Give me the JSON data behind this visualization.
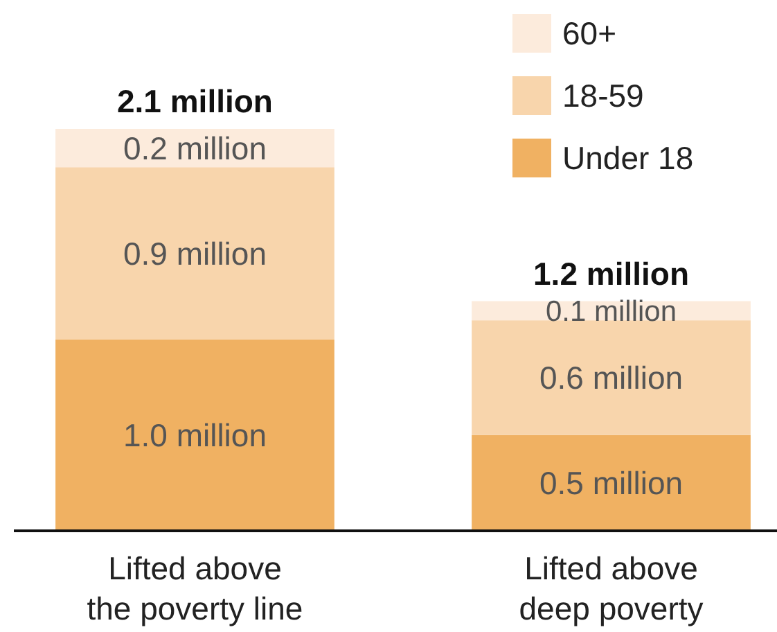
{
  "chart_data": {
    "type": "bar",
    "stacked": true,
    "legend": "top right",
    "categories": [
      "Lifted above\nthe poverty line",
      "Lifted above\ndeep poverty"
    ],
    "series": [
      {
        "name": "Under 18",
        "color": "#f0b162",
        "values": [
          1.0,
          0.5
        ],
        "value_labels": [
          "1.0 million",
          "0.5 million"
        ]
      },
      {
        "name": "18-59",
        "color": "#f8d5ac",
        "values": [
          0.9,
          0.6
        ],
        "value_labels": [
          "0.9 million",
          "0.6 million"
        ]
      },
      {
        "name": "60+",
        "color": "#fcebdc",
        "values": [
          0.2,
          0.1
        ],
        "value_labels": [
          "0.2 million",
          "0.1 million"
        ]
      }
    ],
    "totals": [
      "2.1 million",
      "1.2 million"
    ]
  }
}
